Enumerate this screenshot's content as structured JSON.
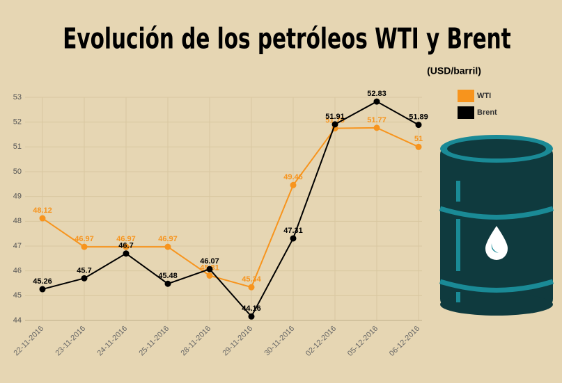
{
  "chart_data": {
    "type": "line",
    "title": "Evolución de los petróleos WTI y Brent",
    "subtitle": "(USD/barril)",
    "categories": [
      "22-11-2016",
      "23-11-2016",
      "24-11-2016",
      "25-11-2016",
      "28-11-2016",
      "29-11-2016",
      "30-11-2016",
      "02-12-2016",
      "05-12-2016",
      "06-12-2016"
    ],
    "series": [
      {
        "name": "WTI",
        "color": "#f7941d",
        "values": [
          48.12,
          46.97,
          46.97,
          46.97,
          45.81,
          45.34,
          49.46,
          51.75,
          51.77,
          51
        ]
      },
      {
        "name": "Brent",
        "color": "#000000",
        "values": [
          45.26,
          45.7,
          46.7,
          45.48,
          46.07,
          44.16,
          47.31,
          51.91,
          52.83,
          51.89
        ]
      }
    ],
    "ylim": [
      44,
      53
    ],
    "yticks": [
      44,
      45,
      46,
      47,
      48,
      49,
      50,
      51,
      52,
      53
    ],
    "grid": true,
    "legend": "top-right"
  }
}
